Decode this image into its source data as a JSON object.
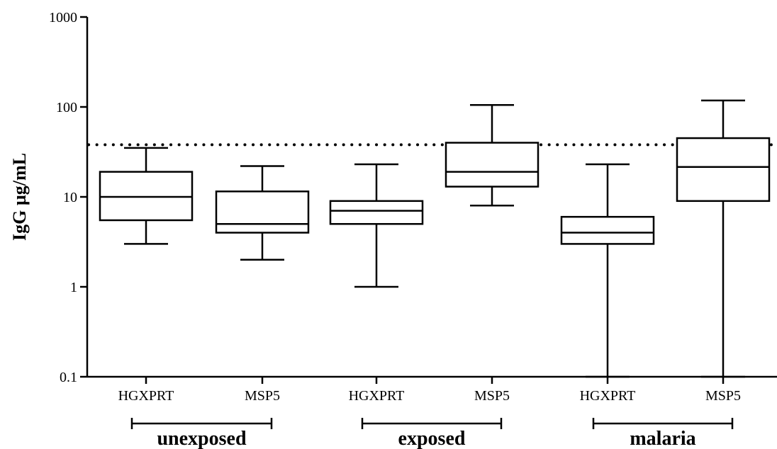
{
  "chart_data": {
    "type": "boxplot",
    "ylabel": "IgG µg/mL",
    "y_scale": "log",
    "ylim": [
      0.1,
      1000
    ],
    "y_ticks": [
      {
        "value": 0.1,
        "label": "0.1"
      },
      {
        "value": 1,
        "label": "1"
      },
      {
        "value": 10,
        "label": "10"
      },
      {
        "value": 100,
        "label": "100"
      },
      {
        "value": 1000,
        "label": "1000"
      }
    ],
    "categories": [
      "HGXPRT",
      "MSP5",
      "HGXPRT",
      "MSP5",
      "HGXPRT",
      "MSP5"
    ],
    "groups": [
      {
        "label": "unexposed",
        "members": [
          0,
          1
        ]
      },
      {
        "label": "exposed",
        "members": [
          2,
          3
        ]
      },
      {
        "label": "malaria",
        "members": [
          4,
          5
        ]
      }
    ],
    "boxes": [
      {
        "min": 3,
        "q1": 5.5,
        "median": 10,
        "q3": 19,
        "max": 35
      },
      {
        "min": 2,
        "q1": 4,
        "median": 5,
        "q3": 11.5,
        "max": 22
      },
      {
        "min": 1,
        "q1": 5,
        "median": 7,
        "q3": 9,
        "max": 23
      },
      {
        "min": 8,
        "q1": 13,
        "median": 19,
        "q3": 40,
        "max": 105
      },
      {
        "min": 0.1,
        "q1": 3,
        "median": 4,
        "q3": 6,
        "max": 23
      },
      {
        "min": 0.1,
        "q1": 9,
        "median": 21.5,
        "q3": 45,
        "max": 118
      }
    ],
    "reference_line": {
      "value": 38,
      "style": "dotted"
    },
    "grid": false
  }
}
